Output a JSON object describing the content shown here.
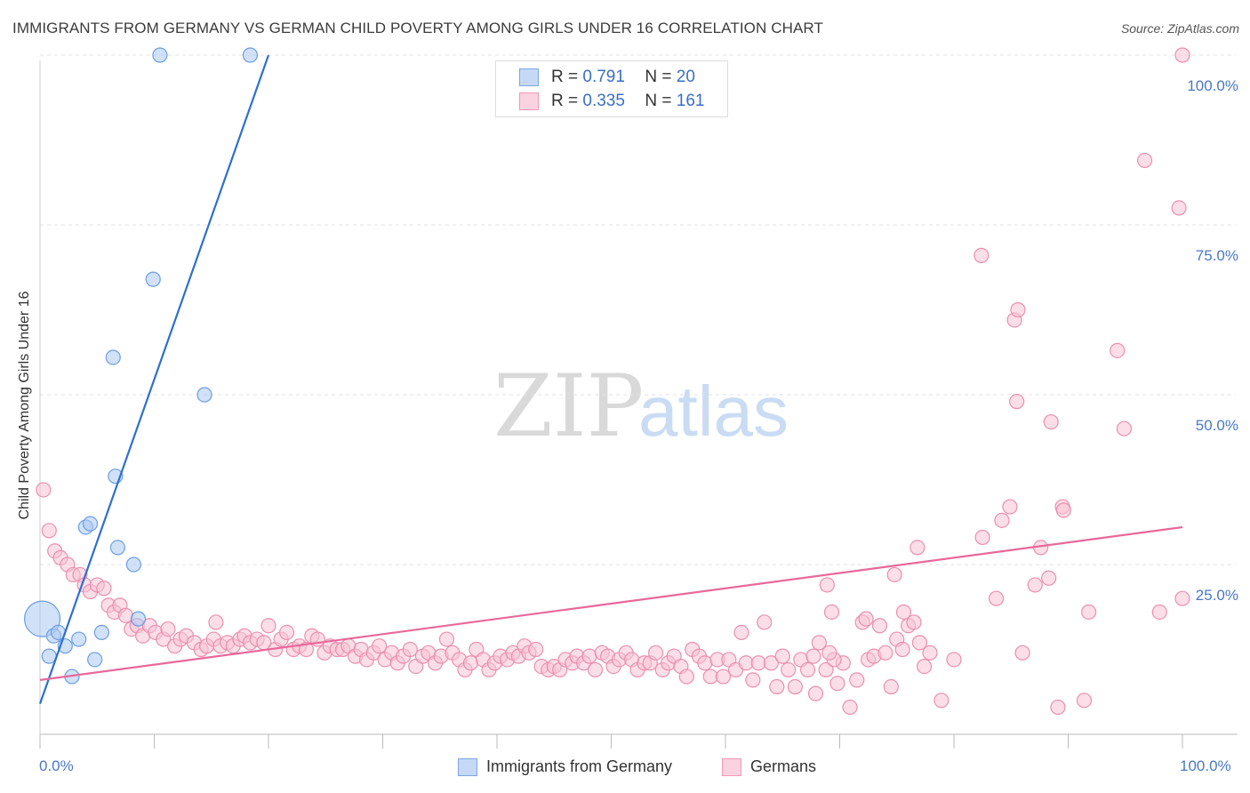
{
  "header": {
    "title": "IMMIGRANTS FROM GERMANY VS GERMAN CHILD POVERTY AMONG GIRLS UNDER 16 CORRELATION CHART",
    "source": "Source: ZipAtlas.com"
  },
  "watermark": {
    "zip": "ZIP",
    "atlas": "atlas"
  },
  "legend": {
    "rows": [
      {
        "r_label": "R =",
        "r_value": "0.791",
        "n_label": "N =",
        "n_value": "20",
        "color": "#a9c8f2"
      },
      {
        "r_label": "R =",
        "r_value": "0.335",
        "n_label": "N =",
        "n_value": "161",
        "color": "#f7b9ce"
      }
    ]
  },
  "bottom_legend": {
    "series1": "Immigrants from Germany",
    "series2": "Germans"
  },
  "colors": {
    "blue_fill": "#a9c8f2",
    "blue_stroke": "#6d9ee3",
    "blue_line": "#2e6fd0",
    "pink_fill": "#f8c3d4",
    "pink_stroke": "#eb8fb0",
    "pink_line": "#e8689a",
    "grid": "#e2e2e2",
    "tick_text": "#4a78c7"
  },
  "chart_data": {
    "type": "scatter",
    "title": "IMMIGRANTS FROM GERMANY VS GERMAN CHILD POVERTY AMONG GIRLS UNDER 16 CORRELATION CHART",
    "xlabel": "",
    "ylabel": "Child Poverty Among Girls Under 16",
    "xlim": [
      0,
      100
    ],
    "ylim": [
      0,
      100
    ],
    "y_ticks": [
      {
        "value": 25,
        "label": "25.0%"
      },
      {
        "value": 50,
        "label": "50.0%"
      },
      {
        "value": 75,
        "label": "75.0%"
      },
      {
        "value": 100,
        "label": "100.0%"
      }
    ],
    "x_ticks": [
      {
        "value": 0,
        "label": "0.0%"
      },
      {
        "value": 100,
        "label": "100.0%"
      }
    ],
    "x_minor_ticks": [
      0,
      10,
      20,
      30,
      40,
      50,
      60,
      70,
      80,
      90,
      100
    ],
    "series": [
      {
        "name": "Immigrants from Germany",
        "R": 0.791,
        "N": 20,
        "trend": {
          "x0": 0,
          "y0": 4.5,
          "x1": 20,
          "y1": 100
        },
        "points": [
          [
            0.2,
            17,
            20
          ],
          [
            0.8,
            11.5,
            8
          ],
          [
            1.2,
            14.5,
            8
          ],
          [
            1.6,
            15,
            8
          ],
          [
            2.2,
            13,
            8
          ],
          [
            2.8,
            8.5,
            8
          ],
          [
            3.4,
            14,
            8
          ],
          [
            4.0,
            30.5,
            8
          ],
          [
            4.4,
            31,
            8
          ],
          [
            4.8,
            11,
            8
          ],
          [
            5.4,
            15,
            8
          ],
          [
            6.4,
            55.5,
            8
          ],
          [
            6.6,
            38,
            8
          ],
          [
            6.8,
            27.5,
            8
          ],
          [
            8.2,
            25,
            8
          ],
          [
            8.6,
            17,
            8
          ],
          [
            9.9,
            67,
            8
          ],
          [
            10.5,
            100,
            8
          ],
          [
            14.4,
            50,
            8
          ],
          [
            18.4,
            100,
            8
          ]
        ]
      },
      {
        "name": "Germans",
        "R": 0.335,
        "N": 161,
        "trend": {
          "x0": 0,
          "y0": 8,
          "x1": 100,
          "y1": 30.5
        },
        "points": [
          [
            0.3,
            36,
            8
          ],
          [
            0.8,
            30,
            8
          ],
          [
            1.3,
            27,
            8
          ],
          [
            1.8,
            26,
            8
          ],
          [
            2.4,
            25,
            8
          ],
          [
            2.9,
            23.5,
            8
          ],
          [
            3.5,
            23.5,
            8
          ],
          [
            3.9,
            22,
            8
          ],
          [
            4.4,
            21,
            8
          ],
          [
            5.0,
            22,
            8
          ],
          [
            5.6,
            21.5,
            8
          ],
          [
            6.0,
            19,
            8
          ],
          [
            6.5,
            18,
            8
          ],
          [
            7.0,
            19,
            8
          ],
          [
            7.5,
            17.5,
            8
          ],
          [
            8.0,
            15.5,
            8
          ],
          [
            8.5,
            16,
            8
          ],
          [
            9.0,
            14.5,
            8
          ],
          [
            9.6,
            16,
            8
          ],
          [
            10.1,
            15,
            8
          ],
          [
            10.8,
            14,
            8
          ],
          [
            11.2,
            15.5,
            8
          ],
          [
            11.8,
            13,
            8
          ],
          [
            12.3,
            14,
            8
          ],
          [
            12.8,
            14.5,
            8
          ],
          [
            13.5,
            13.5,
            8
          ],
          [
            14.1,
            12.5,
            8
          ],
          [
            14.6,
            13,
            8
          ],
          [
            15.2,
            14,
            8
          ],
          [
            15.4,
            16.5,
            8
          ],
          [
            15.8,
            13,
            8
          ],
          [
            16.4,
            13.5,
            8
          ],
          [
            16.9,
            13,
            8
          ],
          [
            17.5,
            14,
            8
          ],
          [
            17.9,
            14.5,
            8
          ],
          [
            18.4,
            13.5,
            8
          ],
          [
            19.0,
            14,
            8
          ],
          [
            19.6,
            13.5,
            8
          ],
          [
            20.0,
            16,
            8
          ],
          [
            20.6,
            12.5,
            8
          ],
          [
            21.1,
            14,
            8
          ],
          [
            21.6,
            15,
            8
          ],
          [
            22.2,
            12.5,
            8
          ],
          [
            22.7,
            13,
            8
          ],
          [
            23.3,
            12.5,
            8
          ],
          [
            23.8,
            14.5,
            8
          ],
          [
            24.3,
            14,
            8
          ],
          [
            24.9,
            12,
            8
          ],
          [
            25.4,
            13,
            8
          ],
          [
            26.0,
            12.5,
            8
          ],
          [
            26.5,
            12.5,
            8
          ],
          [
            27.0,
            13,
            8
          ],
          [
            27.6,
            11.5,
            8
          ],
          [
            28.1,
            12.5,
            8
          ],
          [
            28.6,
            11,
            8
          ],
          [
            29.2,
            12,
            8
          ],
          [
            29.7,
            13,
            8
          ],
          [
            30.2,
            11,
            8
          ],
          [
            30.8,
            12,
            8
          ],
          [
            31.3,
            10.5,
            8
          ],
          [
            31.8,
            11.5,
            8
          ],
          [
            32.4,
            12.5,
            8
          ],
          [
            32.9,
            10,
            8
          ],
          [
            33.5,
            11.5,
            8
          ],
          [
            34.0,
            12,
            8
          ],
          [
            34.6,
            10.5,
            8
          ],
          [
            35.1,
            11.5,
            8
          ],
          [
            35.6,
            14,
            8
          ],
          [
            36.1,
            12,
            8
          ],
          [
            36.7,
            11,
            8
          ],
          [
            37.2,
            9.5,
            8
          ],
          [
            37.7,
            10.5,
            8
          ],
          [
            38.2,
            12.5,
            8
          ],
          [
            38.8,
            11,
            8
          ],
          [
            39.3,
            9.5,
            8
          ],
          [
            39.8,
            10.5,
            8
          ],
          [
            40.3,
            11.5,
            8
          ],
          [
            40.9,
            11,
            8
          ],
          [
            41.4,
            12,
            8
          ],
          [
            41.9,
            11.5,
            8
          ],
          [
            42.4,
            13,
            8
          ],
          [
            42.8,
            12,
            8
          ],
          [
            43.4,
            12.5,
            8
          ],
          [
            43.9,
            10,
            8
          ],
          [
            44.5,
            9.5,
            8
          ],
          [
            45.0,
            10,
            8
          ],
          [
            45.5,
            9.5,
            8
          ],
          [
            46.0,
            11,
            8
          ],
          [
            46.6,
            10.5,
            8
          ],
          [
            47.0,
            11.5,
            8
          ],
          [
            47.6,
            10.5,
            8
          ],
          [
            48.1,
            11.5,
            8
          ],
          [
            48.6,
            9.5,
            8
          ],
          [
            49.2,
            12,
            8
          ],
          [
            49.7,
            11.5,
            8
          ],
          [
            50.2,
            10,
            8
          ],
          [
            50.7,
            11,
            8
          ],
          [
            51.3,
            12,
            8
          ],
          [
            51.8,
            11,
            8
          ],
          [
            52.3,
            9.5,
            8
          ],
          [
            52.9,
            10.5,
            8
          ],
          [
            53.4,
            10.5,
            8
          ],
          [
            53.9,
            12,
            8
          ],
          [
            54.5,
            9.5,
            8
          ],
          [
            55.0,
            10.5,
            8
          ],
          [
            55.5,
            11.5,
            8
          ],
          [
            56.1,
            10,
            8
          ],
          [
            56.6,
            8.5,
            8
          ],
          [
            57.1,
            12.5,
            8
          ],
          [
            57.7,
            11.5,
            8
          ],
          [
            58.2,
            10.5,
            8
          ],
          [
            58.7,
            8.5,
            8
          ],
          [
            59.3,
            11,
            8
          ],
          [
            59.8,
            8.5,
            8
          ],
          [
            60.3,
            11,
            8
          ],
          [
            60.9,
            9.5,
            8
          ],
          [
            61.4,
            15,
            8
          ],
          [
            61.8,
            10.5,
            8
          ],
          [
            62.4,
            8,
            8
          ],
          [
            62.9,
            10.5,
            8
          ],
          [
            63.4,
            16.5,
            8
          ],
          [
            64.0,
            10.5,
            8
          ],
          [
            64.5,
            7,
            8
          ],
          [
            65.0,
            11.5,
            8
          ],
          [
            65.5,
            9.5,
            8
          ],
          [
            66.1,
            7,
            8
          ],
          [
            66.6,
            11,
            8
          ],
          [
            67.2,
            9.5,
            8
          ],
          [
            67.7,
            11.5,
            8
          ],
          [
            68.2,
            13.5,
            8
          ],
          [
            68.8,
            9.5,
            8
          ],
          [
            69.3,
            18,
            8
          ],
          [
            69.8,
            7.5,
            8
          ],
          [
            70.3,
            10.5,
            8
          ],
          [
            70.9,
            4,
            8
          ],
          [
            71.5,
            8,
            8
          ],
          [
            72.0,
            16.5,
            8
          ],
          [
            72.5,
            11,
            8
          ],
          [
            73.0,
            11.5,
            8
          ],
          [
            73.5,
            16,
            8
          ],
          [
            74.0,
            12,
            8
          ],
          [
            74.5,
            7,
            8
          ],
          [
            75.0,
            14,
            8
          ],
          [
            75.5,
            12.5,
            8
          ],
          [
            76.0,
            16,
            8
          ],
          [
            76.5,
            16.5,
            8
          ],
          [
            77.0,
            13.5,
            8
          ],
          [
            77.4,
            10,
            8
          ],
          [
            77.9,
            12,
            8
          ],
          [
            68.9,
            22,
            8
          ],
          [
            69.5,
            11,
            8
          ],
          [
            86.0,
            12,
            8
          ],
          [
            89.1,
            4,
            8
          ],
          [
            91.4,
            5,
            8
          ]
        ],
        "extra_points": [
          [
            69.1,
            12.0,
            8
          ],
          [
            67.9,
            6.0,
            8
          ],
          [
            72.3,
            17.0,
            8
          ],
          [
            74.8,
            23.5,
            8
          ],
          [
            75.6,
            18.0,
            8
          ],
          [
            76.8,
            27.5,
            8
          ],
          [
            82.5,
            29.0,
            8
          ],
          [
            84.9,
            33.5,
            8
          ],
          [
            84.2,
            31.5,
            8
          ],
          [
            87.1,
            22.0,
            8
          ],
          [
            88.3,
            23.0,
            8
          ],
          [
            87.6,
            27.5,
            8
          ],
          [
            89.5,
            33.5,
            8
          ],
          [
            85.5,
            49.0,
            8
          ],
          [
            88.5,
            46.0,
            8
          ],
          [
            89.6,
            33.0,
            8
          ],
          [
            83.7,
            20.0,
            8
          ],
          [
            91.8,
            18.0,
            8
          ],
          [
            94.3,
            56.5,
            8
          ],
          [
            94.9,
            45.0,
            8
          ],
          [
            96.7,
            84.5,
            8
          ],
          [
            99.7,
            77.5,
            8
          ],
          [
            102.3,
            100.0,
            8
          ],
          [
            82.4,
            70.5,
            8
          ],
          [
            85.3,
            61.0,
            8
          ],
          [
            85.6,
            62.5,
            8
          ],
          [
            98.0,
            18.0,
            8
          ],
          [
            101.5,
            20.0,
            8
          ],
          [
            78.9,
            5.0,
            8
          ],
          [
            80.0,
            11.0,
            8
          ]
        ]
      }
    ]
  }
}
